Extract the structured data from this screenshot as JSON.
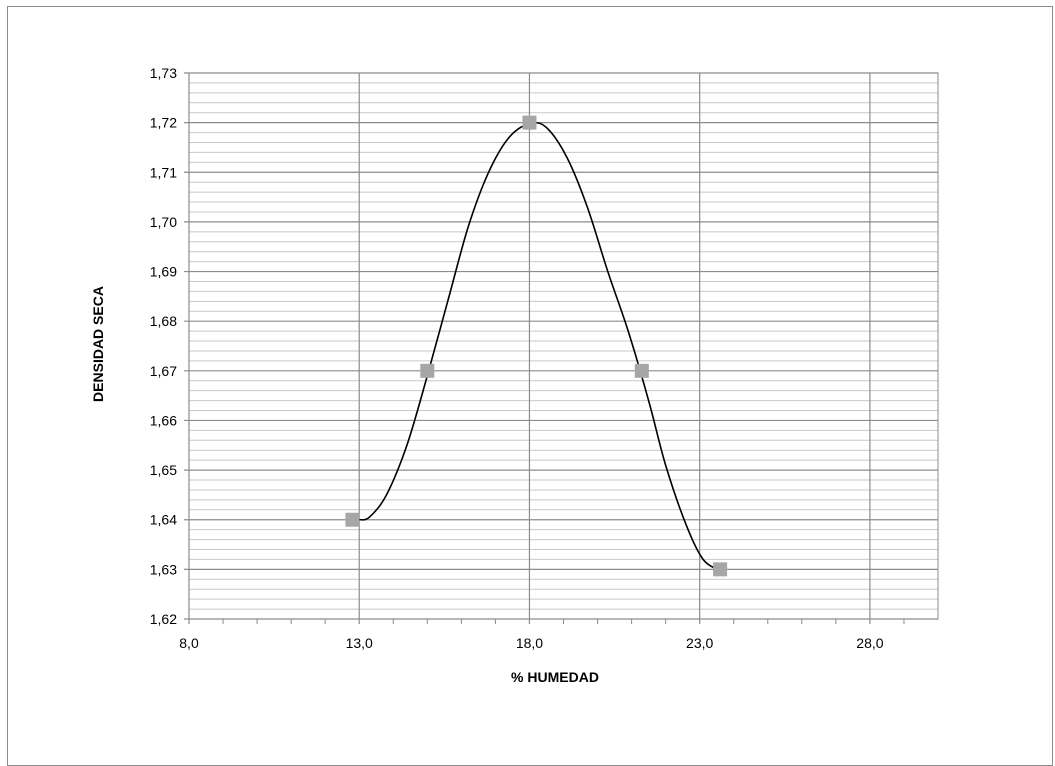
{
  "chart_data": {
    "type": "scatter",
    "title": "",
    "xlabel": "% HUMEDAD",
    "ylabel": "DENSIDAD SECA",
    "xlim": [
      8.0,
      30.0
    ],
    "ylim": [
      1.62,
      1.73
    ],
    "x_major_ticks": [
      8.0,
      13.0,
      18.0,
      23.0,
      28.0
    ],
    "x_tick_labels": [
      "8,0",
      "13,0",
      "18,0",
      "23,0",
      "28,0"
    ],
    "y_major_ticks": [
      1.62,
      1.63,
      1.64,
      1.65,
      1.66,
      1.67,
      1.68,
      1.69,
      1.7,
      1.71,
      1.72,
      1.73
    ],
    "y_tick_labels": [
      "1,62",
      "1,63",
      "1,64",
      "1,65",
      "1,66",
      "1,67",
      "1,68",
      "1,69",
      "1,70",
      "1,71",
      "1,72",
      "1,73"
    ],
    "grid": "major and minor",
    "legend": "none",
    "series": [
      {
        "marker": "square",
        "color": "#a6a6a6",
        "x": [
          12.8,
          15.0,
          18.0,
          21.3,
          23.6
        ],
        "y": [
          1.64,
          1.67,
          1.72,
          1.67,
          1.63
        ]
      }
    ],
    "trendline": {
      "style": "smooth curve",
      "color": "#000000",
      "points": [
        [
          13.0,
          1.64
        ],
        [
          13.3,
          1.6405
        ],
        [
          13.8,
          1.645
        ],
        [
          14.4,
          1.655
        ],
        [
          15.0,
          1.669
        ],
        [
          15.6,
          1.684
        ],
        [
          16.2,
          1.699
        ],
        [
          16.8,
          1.71
        ],
        [
          17.4,
          1.717
        ],
        [
          18.0,
          1.7198
        ],
        [
          18.5,
          1.719
        ],
        [
          19.1,
          1.713
        ],
        [
          19.7,
          1.703
        ],
        [
          20.3,
          1.69
        ],
        [
          20.9,
          1.678
        ],
        [
          21.5,
          1.664
        ],
        [
          22.0,
          1.651
        ],
        [
          22.6,
          1.639
        ],
        [
          23.1,
          1.632
        ],
        [
          23.6,
          1.6298
        ]
      ]
    }
  }
}
